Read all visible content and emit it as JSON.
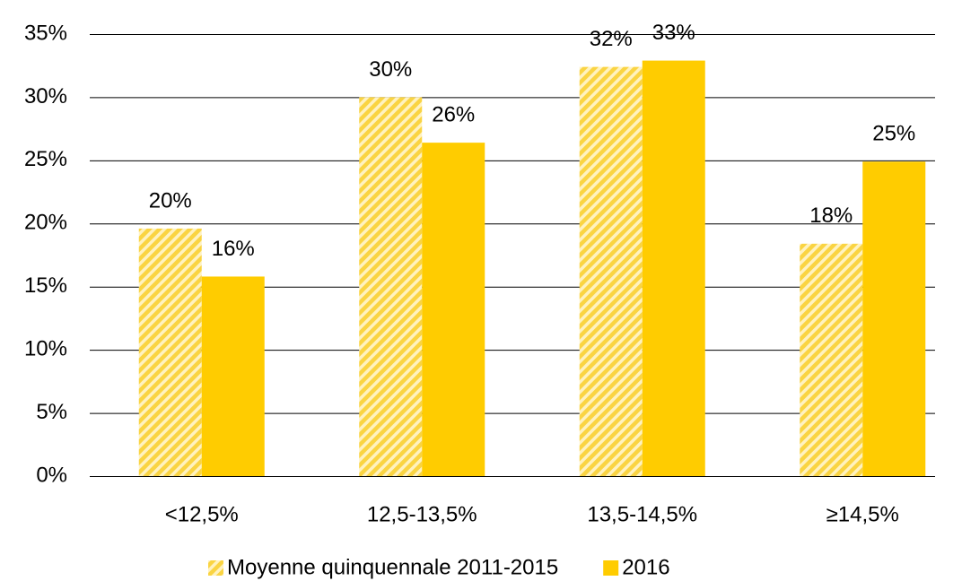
{
  "chart_data": {
    "type": "bar",
    "categories": [
      "<12,5%",
      "12,5-13,5%",
      "13,5-14,5%",
      "≥14,5%"
    ],
    "series": [
      {
        "name": "Moyenne quinquennale 2011-2015",
        "color": "#FFCC00",
        "hatch": true,
        "values": [
          19.6,
          30.0,
          32.4,
          18.4
        ],
        "value_labels": [
          "20%",
          "30%",
          "32%",
          "18%"
        ]
      },
      {
        "name": "2016",
        "color": "#FFCC00",
        "values": [
          15.8,
          26.4,
          32.9,
          24.9
        ],
        "value_labels": [
          "16%",
          "26%",
          "33%",
          "25%"
        ]
      }
    ],
    "ylim": [
      0,
      35
    ],
    "yticks": [
      {
        "value": 0,
        "label": "0%"
      },
      {
        "value": 5,
        "label": "5%"
      },
      {
        "value": 10,
        "label": "10%"
      },
      {
        "value": 15,
        "label": "15%"
      },
      {
        "value": 20,
        "label": "20%"
      },
      {
        "value": 25,
        "label": "25%"
      },
      {
        "value": 30,
        "label": "30%"
      },
      {
        "value": 35,
        "label": "35%"
      }
    ],
    "grid": true
  }
}
